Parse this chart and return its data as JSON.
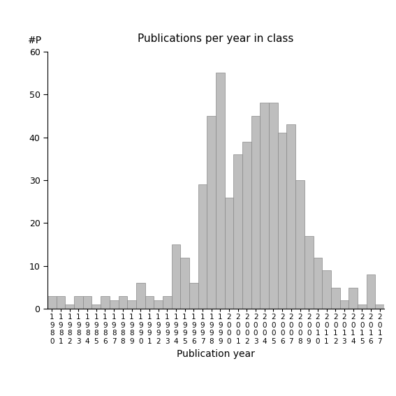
{
  "title": "Publications per year in class",
  "xlabel": "Publication year",
  "ylabel": "#P",
  "bar_color": "#bebebe",
  "bar_edge_color": "#888888",
  "ylim": [
    0,
    60
  ],
  "yticks": [
    0,
    10,
    20,
    30,
    40,
    50,
    60
  ],
  "years": [
    1980,
    1981,
    1982,
    1983,
    1984,
    1985,
    1986,
    1987,
    1988,
    1989,
    1990,
    1991,
    1992,
    1993,
    1994,
    1995,
    1996,
    1997,
    1998,
    1999,
    2000,
    2001,
    2002,
    2003,
    2004,
    2005,
    2006,
    2007,
    2008,
    2009,
    2010,
    2011,
    2012,
    2013,
    2014,
    2015,
    2016,
    2017
  ],
  "values": [
    3,
    3,
    1,
    3,
    3,
    1,
    3,
    2,
    3,
    2,
    6,
    3,
    2,
    3,
    15,
    12,
    6,
    29,
    45,
    55,
    26,
    36,
    39,
    45,
    48,
    48,
    41,
    43,
    30,
    17,
    12,
    9,
    5,
    2,
    5,
    1,
    8,
    1
  ]
}
